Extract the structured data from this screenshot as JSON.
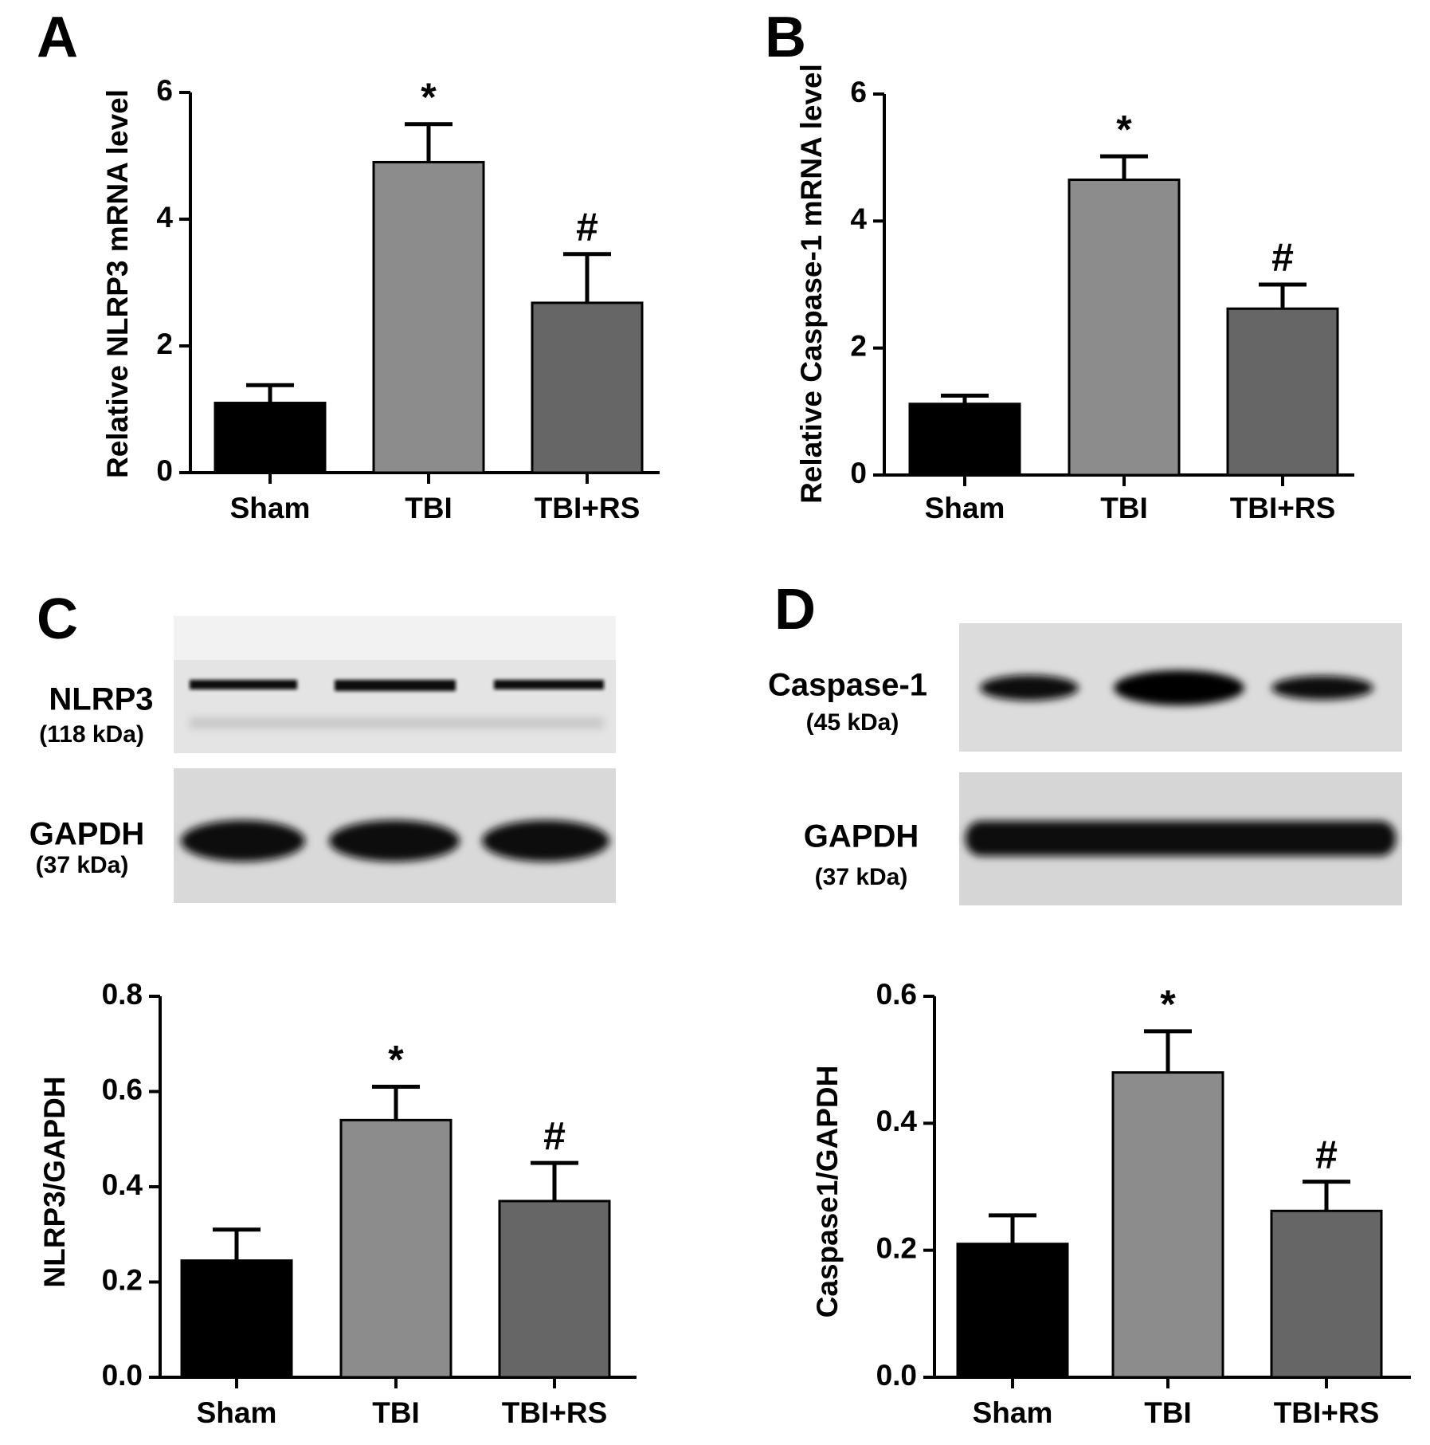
{
  "panel_labels": [
    "A",
    "B",
    "C",
    "D"
  ],
  "blots": [
    {
      "rows": [
        {
          "protein": "NLRP3",
          "size": "(118 kDa)"
        },
        {
          "protein": "GAPDH",
          "size": "(37 kDa)"
        }
      ]
    },
    {
      "rows": [
        {
          "protein": "Caspase-1",
          "size": "(45 kDa)"
        },
        {
          "protein": "GAPDH",
          "size": "(37 kDa)"
        }
      ]
    }
  ],
  "chart_data": [
    {
      "type": "bar",
      "y_label": "Relative NLRP3 mRNA level",
      "categories": [
        "Sham",
        "TBI",
        "TBI+RS"
      ],
      "values": [
        1.1,
        4.9,
        2.68
      ],
      "errors": [
        0.28,
        0.6,
        0.77
      ],
      "markers": [
        null,
        "*",
        "#"
      ],
      "colors": [
        "#000000",
        "#8c8c8c",
        "#666666"
      ],
      "ylim": [
        0,
        6
      ],
      "yticks": [
        0,
        2,
        4,
        6
      ]
    },
    {
      "type": "bar",
      "y_label": "Relative Caspase-1 mRNA level",
      "categories": [
        "Sham",
        "TBI",
        "TBI+RS"
      ],
      "values": [
        1.12,
        4.65,
        2.62
      ],
      "errors": [
        0.13,
        0.37,
        0.38
      ],
      "markers": [
        null,
        "*",
        "#"
      ],
      "colors": [
        "#000000",
        "#8c8c8c",
        "#666666"
      ],
      "ylim": [
        0,
        6
      ],
      "yticks": [
        0,
        2,
        4,
        6
      ]
    },
    {
      "type": "bar",
      "y_label": "NLRP3/GAPDH",
      "categories": [
        "Sham",
        "TBI",
        "TBI+RS"
      ],
      "values": [
        0.245,
        0.54,
        0.37
      ],
      "errors": [
        0.065,
        0.07,
        0.08
      ],
      "markers": [
        null,
        "*",
        "#"
      ],
      "colors": [
        "#000000",
        "#8c8c8c",
        "#666666"
      ],
      "ylim": [
        0,
        0.8
      ],
      "yticks": [
        {
          "value": 0,
          "label": "0.0"
        },
        0.2,
        0.4,
        0.6,
        0.8
      ]
    },
    {
      "type": "bar",
      "y_label": "Caspase1/GAPDH",
      "categories": [
        "Sham",
        "TBI",
        "TBI+RS"
      ],
      "values": [
        0.21,
        0.48,
        0.262
      ],
      "errors": [
        0.045,
        0.065,
        0.046
      ],
      "markers": [
        null,
        "*",
        "#"
      ],
      "colors": [
        "#000000",
        "#8c8c8c",
        "#666666"
      ],
      "ylim": [
        0,
        0.6
      ],
      "yticks": [
        {
          "value": 0,
          "label": "0.0"
        },
        0.2,
        0.4,
        0.6
      ]
    }
  ]
}
